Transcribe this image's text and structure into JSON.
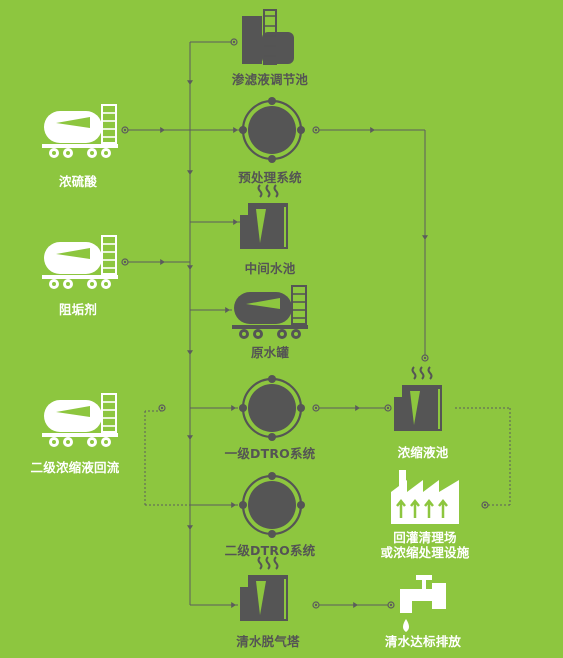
{
  "colors": {
    "background": "#8DC63F",
    "dark": "#555555",
    "white": "#FFFFFF",
    "line": "#5C5C5C"
  },
  "inputs": [
    {
      "id": "acid",
      "label": "浓硫酸",
      "icon": "tanker-truck-icon"
    },
    {
      "id": "antiscalant",
      "label": "阻垢剂",
      "icon": "tanker-truck-icon"
    },
    {
      "id": "concentrate-return",
      "label": "二级浓缩液回流",
      "icon": "tanker-truck-icon"
    }
  ],
  "process_units": [
    {
      "id": "leachate-tank",
      "label": "渗滤液调节池",
      "icon": "tank-building-icon"
    },
    {
      "id": "pretreatment",
      "label": "预处理系统",
      "icon": "membrane-unit-icon"
    },
    {
      "id": "middle-tank",
      "label": "中间水池",
      "icon": "steam-tank-icon"
    },
    {
      "id": "raw-water-tank",
      "label": "原水罐",
      "icon": "tanker-truck-icon"
    },
    {
      "id": "dtro-1",
      "label": "一级DTRO系统",
      "icon": "membrane-unit-icon"
    },
    {
      "id": "dtro-2",
      "label": "二级DTRO系统",
      "icon": "membrane-unit-icon"
    },
    {
      "id": "degassing-tower",
      "label": "清水脱气塔",
      "icon": "steam-tank-icon"
    }
  ],
  "outputs": [
    {
      "id": "concentrate-tank",
      "label": "浓缩液池",
      "icon": "steam-tank-icon"
    },
    {
      "id": "disposal",
      "label": "回灌清理场\n或浓缩处理设施",
      "icon": "factory-icon"
    },
    {
      "id": "clean-water",
      "label": "清水达标排放",
      "icon": "faucet-icon"
    }
  ]
}
